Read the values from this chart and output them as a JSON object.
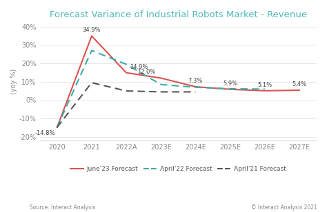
{
  "title": "Forecast Variance of Industrial Robots Market - Revenue",
  "ylabel": "(yoy %)",
  "categories": [
    "2020",
    "2021",
    "2022A",
    "2023E",
    "2024E",
    "2025E",
    "2026E",
    "2027E"
  ],
  "june23": [
    -14.8,
    34.9,
    14.9,
    12.0,
    7.3,
    5.9,
    5.1,
    5.4
  ],
  "april22": [
    -14.8,
    27.0,
    19.5,
    8.5,
    7.0,
    6.2,
    6.0,
    null
  ],
  "april21": [
    -14.8,
    9.5,
    5.0,
    4.5,
    4.5,
    null,
    null,
    null
  ],
  "june23_color": "#d9534f",
  "april22_color": "#3aacac",
  "april21_color": "#555555",
  "annotations_june23": [
    "-14.8%",
    "34.9%",
    "14.9%",
    "12.0%",
    "7.3%",
    "5.9%",
    "5.1%",
    "5.4%"
  ],
  "ann_ha": [
    "right",
    "center",
    "left",
    "right",
    "center",
    "center",
    "center",
    "center"
  ],
  "ann_va": [
    "top",
    "bottom",
    "bottom",
    "bottom",
    "bottom",
    "bottom",
    "bottom",
    "bottom"
  ],
  "ann_offsets_x": [
    -0.05,
    0.0,
    0.1,
    -0.15,
    0.0,
    0.0,
    0.0,
    0.0
  ],
  "ann_offsets_y": [
    -1.5,
    1.5,
    1.5,
    1.5,
    1.5,
    1.5,
    1.5,
    1.5
  ],
  "ylim": [
    -22,
    42
  ],
  "yticks": [
    -20,
    -10,
    0,
    10,
    20,
    30,
    40
  ],
  "source_left": "Source: Interact Analysis",
  "source_right": "© Interact Analysis 2021",
  "bg_color": "#ffffff",
  "title_color": "#4db8b8",
  "grid_color": "#dddddd",
  "tick_color": "#888888",
  "legend_labels": [
    "June'23 Forecast",
    "April'22 Forecast",
    "April'21 Forecast"
  ]
}
